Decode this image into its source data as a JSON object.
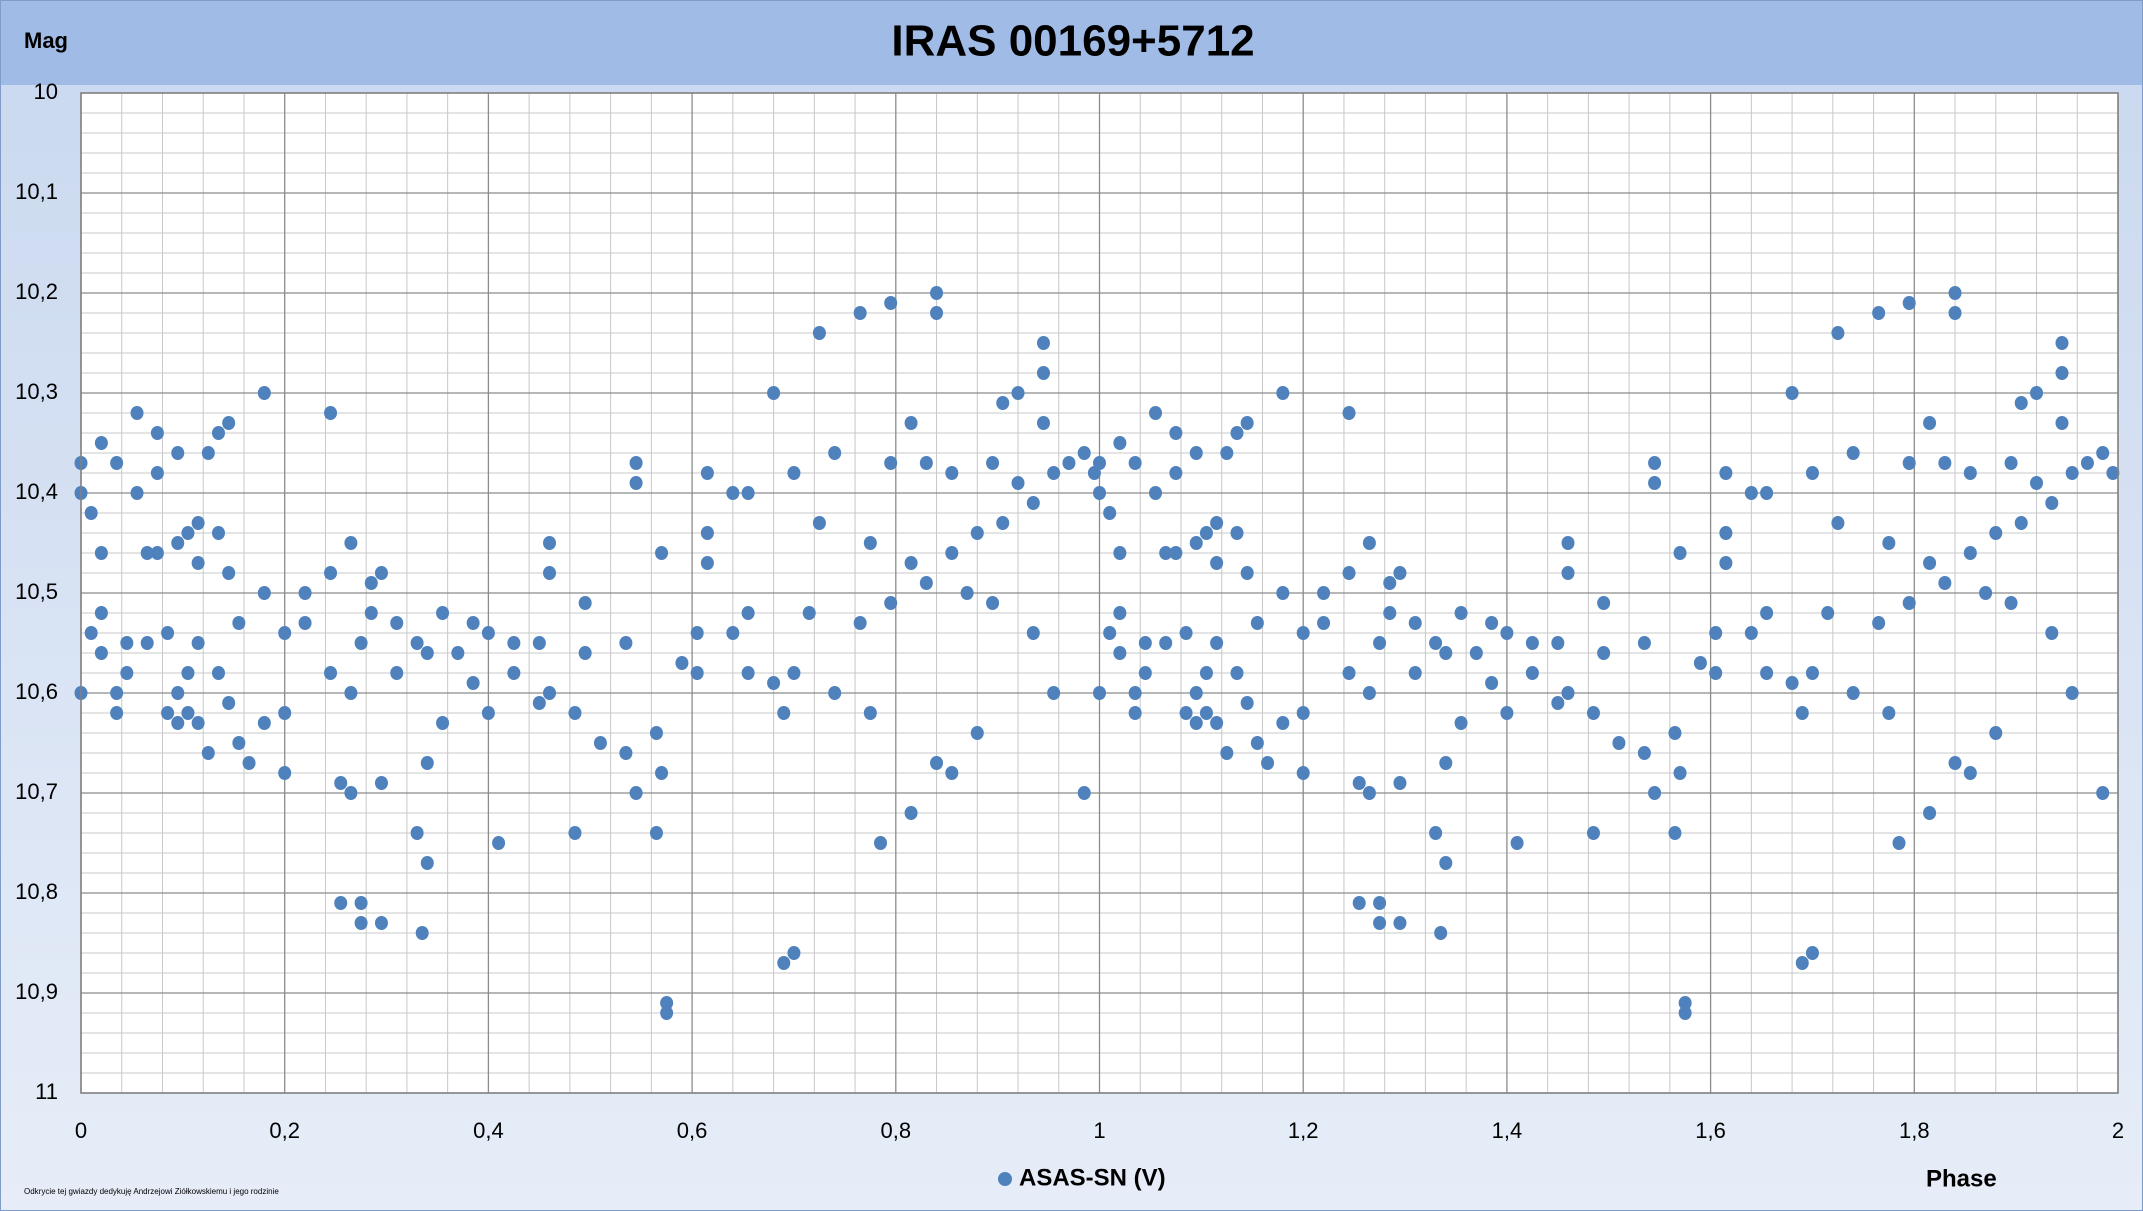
{
  "chart_data": {
    "type": "scatter",
    "title": "IRAS  00169+5712",
    "y_label": "Mag",
    "x_label": "Phase",
    "note": "Odkrycie tej gwiazdy dedykuję Andrzejowi Ziółkowskiemu i jego rodzinie",
    "grid": true,
    "minor_grid": true,
    "legend": "bottom",
    "xlim": [
      0,
      2
    ],
    "ylim": [
      11,
      10
    ],
    "xticks": [
      0,
      {
        "value": 0.2,
        "label": "0,2"
      },
      {
        "value": 0.4,
        "label": "0,4"
      },
      {
        "value": 0.6,
        "label": "0,6"
      },
      {
        "value": 0.8,
        "label": "0,8"
      },
      1,
      {
        "value": 1.2,
        "label": "1,2"
      },
      {
        "value": 1.4,
        "label": "1,4"
      },
      {
        "value": 1.6,
        "label": "1,6"
      },
      {
        "value": 1.8,
        "label": "1,8"
      },
      2
    ],
    "yticks": [
      10,
      {
        "value": 10.1,
        "label": "10,1"
      },
      {
        "value": 10.2,
        "label": "10,2"
      },
      {
        "value": 10.3,
        "label": "10,3"
      },
      {
        "value": 10.4,
        "label": "10,4"
      },
      {
        "value": 10.5,
        "label": "10,5"
      },
      {
        "value": 10.6,
        "label": "10,6"
      },
      {
        "value": 10.7,
        "label": "10,7"
      },
      {
        "value": 10.8,
        "label": "10,8"
      },
      {
        "value": 10.9,
        "label": "10,9"
      },
      11
    ],
    "x": [
      0,
      0,
      0,
      0.01,
      0.01,
      0.02,
      0.02,
      0.02,
      0.02,
      0.035,
      0.035,
      0.035,
      0.045,
      0.045,
      0.055,
      0.055,
      0.065,
      0.065,
      0.075,
      0.075,
      0.075,
      0.085,
      0.085,
      0.095,
      0.095,
      0.095,
      0.095,
      0.105,
      0.105,
      0.105,
      0.115,
      0.115,
      0.115,
      0.115,
      0.125,
      0.125,
      0.135,
      0.135,
      0.135,
      0.145,
      0.145,
      0.145,
      0.155,
      0.155,
      0.165,
      0.18,
      0.18,
      0.18,
      0.2,
      0.2,
      0.2,
      0.22,
      0.22,
      0.245,
      0.245,
      0.245,
      0.255,
      0.255,
      0.265,
      0.265,
      0.265,
      0.275,
      0.275,
      0.275,
      0.285,
      0.285,
      0.295,
      0.295,
      0.295,
      0.31,
      0.31,
      0.33,
      0.33,
      0.335,
      0.34,
      0.34,
      0.34,
      0.355,
      0.355,
      0.37,
      0.385,
      0.385,
      0.4,
      0.4,
      0.41,
      0.425,
      0.425,
      0.45,
      0.45,
      0.46,
      0.46,
      0.46,
      0.485,
      0.485,
      0.495,
      0.495,
      0.51,
      0.535,
      0.535,
      0.545,
      0.545,
      0.545,
      0.565,
      0.565,
      0.57,
      0.57,
      0.575,
      0.575,
      0.59,
      0.605,
      0.605,
      0.615,
      0.615,
      0.615,
      0.64,
      0.64,
      0.655,
      0.655,
      0.655,
      0.68,
      0.68,
      0.69,
      0.69,
      0.7,
      0.7,
      0.7,
      0.715,
      0.725,
      0.725,
      0.74,
      0.74,
      0.765,
      0.765,
      0.775,
      0.775,
      0.785,
      0.795,
      0.795,
      0.795,
      0.815,
      0.815,
      0.815,
      0.83,
      0.83,
      0.84,
      0.84,
      0.84,
      0.855,
      0.855,
      0.855,
      0.87,
      0.88,
      0.88,
      0.895,
      0.895,
      0.905,
      0.905,
      0.92,
      0.92,
      0.935,
      0.935,
      0.945,
      0.945,
      0.945,
      0.955,
      0.955,
      0.97,
      0.985,
      0.985,
      0.995,
      1,
      1,
      1,
      1.01,
      1.01,
      1.02,
      1.02,
      1.02,
      1.02,
      1.035,
      1.035,
      1.035,
      1.045,
      1.045,
      1.055,
      1.055,
      1.065,
      1.065,
      1.075,
      1.075,
      1.075,
      1.085,
      1.085,
      1.095,
      1.095,
      1.095,
      1.095,
      1.105,
      1.105,
      1.105,
      1.115,
      1.115,
      1.115,
      1.115,
      1.125,
      1.125,
      1.135,
      1.135,
      1.135,
      1.145,
      1.145,
      1.145,
      1.155,
      1.155,
      1.165,
      1.18,
      1.18,
      1.18,
      1.2,
      1.2,
      1.2,
      1.22,
      1.22,
      1.245,
      1.245,
      1.245,
      1.255,
      1.255,
      1.265,
      1.265,
      1.265,
      1.275,
      1.275,
      1.275,
      1.285,
      1.285,
      1.295,
      1.295,
      1.295,
      1.31,
      1.31,
      1.33,
      1.33,
      1.335,
      1.34,
      1.34,
      1.34,
      1.355,
      1.355,
      1.37,
      1.385,
      1.385,
      1.4,
      1.4,
      1.41,
      1.425,
      1.425,
      1.45,
      1.45,
      1.46,
      1.46,
      1.46,
      1.485,
      1.485,
      1.495,
      1.495,
      1.51,
      1.535,
      1.535,
      1.545,
      1.545,
      1.545,
      1.565,
      1.565,
      1.57,
      1.57,
      1.575,
      1.575,
      1.59,
      1.605,
      1.605,
      1.615,
      1.615,
      1.615,
      1.64,
      1.64,
      1.655,
      1.655,
      1.655,
      1.68,
      1.68,
      1.69,
      1.69,
      1.7,
      1.7,
      1.7,
      1.715,
      1.725,
      1.725,
      1.74,
      1.74,
      1.765,
      1.765,
      1.775,
      1.775,
      1.785,
      1.795,
      1.795,
      1.795,
      1.815,
      1.815,
      1.815,
      1.83,
      1.83,
      1.84,
      1.84,
      1.84,
      1.855,
      1.855,
      1.855,
      1.87,
      1.88,
      1.88,
      1.895,
      1.895,
      1.905,
      1.905,
      1.92,
      1.92,
      1.935,
      1.935,
      1.945,
      1.945,
      1.945,
      1.955,
      1.955,
      1.97,
      1.985,
      1.985,
      1.995
    ],
    "series": [
      {
        "name": "ASAS-SN (V)",
        "color": "#4f81bd",
        "values": [
          10.6,
          10.37,
          10.4,
          10.42,
          10.54,
          10.35,
          10.46,
          10.52,
          10.56,
          10.6,
          10.62,
          10.37,
          10.55,
          10.58,
          10.32,
          10.4,
          10.46,
          10.55,
          10.34,
          10.38,
          10.46,
          10.54,
          10.62,
          10.36,
          10.45,
          10.6,
          10.63,
          10.44,
          10.58,
          10.62,
          10.43,
          10.47,
          10.55,
          10.63,
          10.36,
          10.66,
          10.34,
          10.44,
          10.58,
          10.33,
          10.48,
          10.61,
          10.53,
          10.65,
          10.67,
          10.3,
          10.5,
          10.63,
          10.54,
          10.62,
          10.68,
          10.5,
          10.53,
          10.32,
          10.48,
          10.58,
          10.69,
          10.81,
          10.45,
          10.6,
          10.7,
          10.55,
          10.81,
          10.83,
          10.49,
          10.52,
          10.48,
          10.69,
          10.83,
          10.53,
          10.58,
          10.74,
          10.55,
          10.84,
          10.67,
          10.77,
          10.56,
          10.52,
          10.63,
          10.56,
          10.53,
          10.59,
          10.54,
          10.62,
          10.75,
          10.55,
          10.58,
          10.55,
          10.61,
          10.45,
          10.48,
          10.6,
          10.62,
          10.74,
          10.51,
          10.56,
          10.65,
          10.55,
          10.66,
          10.37,
          10.39,
          10.7,
          10.64,
          10.74,
          10.46,
          10.68,
          10.91,
          10.92,
          10.57,
          10.54,
          10.58,
          10.38,
          10.44,
          10.47,
          10.4,
          10.54,
          10.4,
          10.52,
          10.58,
          10.3,
          10.59,
          10.87,
          10.62,
          10.38,
          10.58,
          10.86,
          10.52,
          10.24,
          10.43,
          10.36,
          10.6,
          10.22,
          10.53,
          10.45,
          10.62,
          10.75,
          10.21,
          10.37,
          10.51,
          10.33,
          10.47,
          10.72,
          10.37,
          10.49,
          10.2,
          10.22,
          10.67,
          10.38,
          10.46,
          10.68,
          10.5,
          10.44,
          10.64,
          10.37,
          10.51,
          10.31,
          10.43,
          10.3,
          10.39,
          10.41,
          10.54,
          10.25,
          10.28,
          10.33,
          10.38,
          10.6,
          10.37,
          10.36,
          10.7,
          10.38,
          10.6,
          10.37,
          10.4,
          10.42,
          10.54,
          10.35,
          10.46,
          10.52,
          10.56,
          10.6,
          10.62,
          10.37,
          10.55,
          10.58,
          10.32,
          10.4,
          10.46,
          10.55,
          10.34,
          10.38,
          10.46,
          10.54,
          10.62,
          10.36,
          10.45,
          10.6,
          10.63,
          10.44,
          10.58,
          10.62,
          10.43,
          10.47,
          10.55,
          10.63,
          10.36,
          10.66,
          10.34,
          10.44,
          10.58,
          10.33,
          10.48,
          10.61,
          10.53,
          10.65,
          10.67,
          10.3,
          10.5,
          10.63,
          10.54,
          10.62,
          10.68,
          10.5,
          10.53,
          10.32,
          10.48,
          10.58,
          10.69,
          10.81,
          10.45,
          10.6,
          10.7,
          10.55,
          10.81,
          10.83,
          10.49,
          10.52,
          10.48,
          10.69,
          10.83,
          10.53,
          10.58,
          10.74,
          10.55,
          10.84,
          10.67,
          10.77,
          10.56,
          10.52,
          10.63,
          10.56,
          10.53,
          10.59,
          10.54,
          10.62,
          10.75,
          10.55,
          10.58,
          10.55,
          10.61,
          10.45,
          10.48,
          10.6,
          10.62,
          10.74,
          10.51,
          10.56,
          10.65,
          10.55,
          10.66,
          10.37,
          10.39,
          10.7,
          10.64,
          10.74,
          10.46,
          10.68,
          10.91,
          10.92,
          10.57,
          10.54,
          10.58,
          10.38,
          10.44,
          10.47,
          10.4,
          10.54,
          10.4,
          10.52,
          10.58,
          10.3,
          10.59,
          10.87,
          10.62,
          10.38,
          10.58,
          10.86,
          10.52,
          10.24,
          10.43,
          10.36,
          10.6,
          10.22,
          10.53,
          10.45,
          10.62,
          10.75,
          10.21,
          10.37,
          10.51,
          10.33,
          10.47,
          10.72,
          10.37,
          10.49,
          10.2,
          10.22,
          10.67,
          10.38,
          10.46,
          10.68,
          10.5,
          10.44,
          10.64,
          10.37,
          10.51,
          10.31,
          10.43,
          10.3,
          10.39,
          10.41,
          10.54,
          10.25,
          10.28,
          10.33,
          10.38,
          10.6,
          10.37,
          10.36,
          10.7,
          10.38
        ]
      }
    ]
  }
}
